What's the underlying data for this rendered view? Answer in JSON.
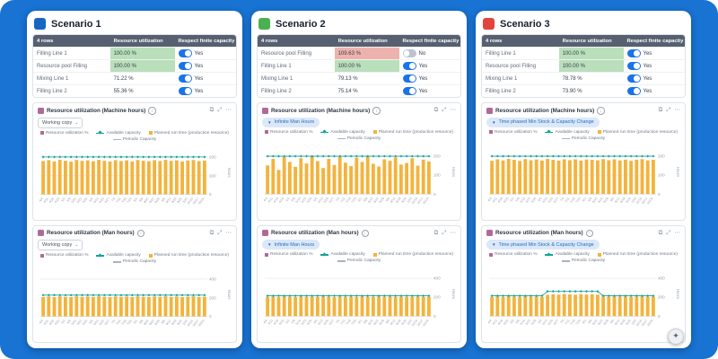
{
  "legend": {
    "utilization": "Resource utilization %",
    "available": "Available capacity",
    "planned": "Planned run time (production resource)",
    "periodic": "Periodic Capacity"
  },
  "card_icons": {
    "copy": "⧉",
    "expand": "⤢",
    "more": "⋯",
    "info": "i",
    "caret": "⌄",
    "funnel": "▼"
  },
  "help_icon": "✦",
  "chart_shared": {
    "unit": "Hours",
    "xlabels": [
      "4/4",
      "4/11",
      "4/18",
      "4/25",
      "5/2",
      "5/9",
      "5/16",
      "5/23",
      "5/30",
      "6/6",
      "6/13",
      "6/20",
      "6/27",
      "7/4",
      "7/11",
      "7/18",
      "7/25",
      "8/1",
      "8/8",
      "8/15",
      "8/22",
      "8/29",
      "9/5",
      "9/12",
      "9/19",
      "9/26",
      "10/3",
      "10/10",
      "10/17",
      "10/24"
    ]
  },
  "scenarios": [
    {
      "title": "Scenario 1",
      "accent": "#1766c2",
      "table": {
        "headers": [
          "4 rows",
          "Resource utilization",
          "Respect finite capacity"
        ],
        "rows": [
          {
            "name": "Filling Line 1",
            "utilization": "100.00 %",
            "highlight": "green",
            "toggle_label": "Yes",
            "toggle_on": true
          },
          {
            "name": "Resource pool Filling",
            "utilization": "100.00 %",
            "highlight": "green",
            "toggle_label": "Yes",
            "toggle_on": true
          },
          {
            "name": "Mixing Line 1",
            "utilization": "71.22 %",
            "highlight": "none",
            "toggle_label": "Yes",
            "toggle_on": true
          },
          {
            "name": "Filling Line 2",
            "utilization": "55.36 %",
            "highlight": "none",
            "toggle_label": "Yes",
            "toggle_on": true
          }
        ]
      },
      "charts": [
        {
          "title": "Resource utilization (Machine hours)",
          "filter": "Working copy",
          "filter_type": "dropdown",
          "data": {
            "type": "bar",
            "scale": 235,
            "ticks": [
              200,
              100
            ],
            "line": 200,
            "bars": [
              178,
              183,
              176,
              185,
              180,
              175,
              184,
              179,
              182,
              177,
              185,
              180,
              176,
              183,
              178,
              182,
              176,
              184,
              180,
              177,
              183,
              178,
              185,
              179,
              182,
              176,
              181,
              184,
              178,
              181
            ]
          }
        },
        {
          "title": "Resource utilization (Man hours)",
          "filter": "Working copy",
          "filter_type": "dropdown",
          "data": {
            "type": "bar",
            "scale": 470,
            "ticks": [
              400,
              200
            ],
            "line": 228,
            "bars": [
              208,
              213,
              206,
              215,
              210,
              207,
              214,
              209,
              212,
              208,
              215,
              210,
              206,
              213,
              209,
              212,
              207,
              214,
              210,
              208,
              213,
              209,
              215,
              208,
              212,
              207,
              211,
              214,
              208,
              211
            ]
          }
        }
      ]
    },
    {
      "title": "Scenario 2",
      "accent": "#4caf50",
      "table": {
        "headers": [
          "4 rows",
          "Resource utilization",
          "Respect finite capacity"
        ],
        "rows": [
          {
            "name": "Resource pool Filling",
            "utilization": "109.63 %",
            "highlight": "red",
            "toggle_label": "No",
            "toggle_on": false
          },
          {
            "name": "Filling Line 1",
            "utilization": "100.00 %",
            "highlight": "green",
            "toggle_label": "Yes",
            "toggle_on": true
          },
          {
            "name": "Mixing Line 1",
            "utilization": "79.13 %",
            "highlight": "none",
            "toggle_label": "Yes",
            "toggle_on": true
          },
          {
            "name": "Filling Line 2",
            "utilization": "75.14 %",
            "highlight": "none",
            "toggle_label": "Yes",
            "toggle_on": true
          }
        ]
      },
      "charts": [
        {
          "title": "Resource utilization (Machine hours)",
          "filter": "Infinite Man Hours",
          "filter_type": "chip",
          "data": {
            "type": "bar",
            "scale": 235,
            "ticks": [
              200,
              100
            ],
            "line": 200,
            "bars": [
              152,
              186,
              128,
              196,
              170,
              144,
              190,
              162,
              200,
              174,
              138,
              186,
              154,
              196,
              166,
              148,
              192,
              170,
              201,
              160,
              146,
              184,
              176,
              194,
              156,
              164,
              190,
              150,
              182,
              172
            ]
          }
        },
        {
          "title": "Resource utilization (Man hours)",
          "filter": "Infinite Man Hours",
          "filter_type": "chip",
          "data": {
            "type": "bar",
            "scale": 470,
            "ticks": [
              400,
              200
            ],
            "line": 215,
            "bars": [
              203,
              206,
              201,
              207,
              204,
              202,
              206,
              203,
              205,
              202,
              207,
              204,
              201,
              206,
              203,
              205,
              202,
              207,
              204,
              202,
              206,
              203,
              207,
              203,
              205,
              202,
              204,
              206,
              203,
              205
            ]
          }
        }
      ]
    },
    {
      "title": "Scenario 3",
      "accent": "#e2453d",
      "table": {
        "headers": [
          "4 rows",
          "Resource utilization",
          "Respect finite capacity"
        ],
        "rows": [
          {
            "name": "Filling Line 1",
            "utilization": "100.00 %",
            "highlight": "green",
            "toggle_label": "Yes",
            "toggle_on": true
          },
          {
            "name": "Resource pool Filling",
            "utilization": "100.00 %",
            "highlight": "green",
            "toggle_label": "Yes",
            "toggle_on": true
          },
          {
            "name": "Mixing Line 1",
            "utilization": "78.78 %",
            "highlight": "none",
            "toggle_label": "Yes",
            "toggle_on": true
          },
          {
            "name": "Filling Line 2",
            "utilization": "73.90 %",
            "highlight": "none",
            "toggle_label": "Yes",
            "toggle_on": true
          }
        ]
      },
      "charts": [
        {
          "title": "Resource utilization (Machine hours)",
          "filter": "Time phased Min Stock & Capacity Change",
          "filter_type": "chip",
          "data": {
            "type": "bar",
            "scale": 235,
            "ticks": [
              200,
              100
            ],
            "line": 200,
            "bars": [
              176,
              184,
              178,
              186,
              181,
              175,
              185,
              179,
              183,
              177,
              186,
              181,
              177,
              184,
              179,
              184,
              177,
              183,
              181,
              178,
              185,
              179,
              184,
              178,
              182,
              176,
              182,
              185,
              178,
              181
            ]
          }
        },
        {
          "title": "Resource utilization (Man hours)",
          "filter": "Time phased Min Stock & Capacity Change",
          "filter_type": "chip",
          "data": {
            "type": "bar",
            "scale": 470,
            "ticks": [
              400,
              200
            ],
            "line": [
              215,
              215,
              215,
              215,
              215,
              215,
              215,
              215,
              215,
              215,
              262,
              262,
              262,
              262,
              262,
              262,
              262,
              262,
              262,
              262,
              215,
              215,
              215,
              215,
              215,
              215,
              215,
              215,
              215,
              215
            ],
            "bars": [
              204,
              208,
              202,
              209,
              205,
              203,
              210,
              204,
              207,
              203,
              226,
              232,
              228,
              235,
              230,
              227,
              233,
              229,
              231,
              228,
              208,
              204,
              209,
              204,
              207,
              203,
              205,
              208,
              204,
              206
            ]
          }
        }
      ]
    }
  ]
}
